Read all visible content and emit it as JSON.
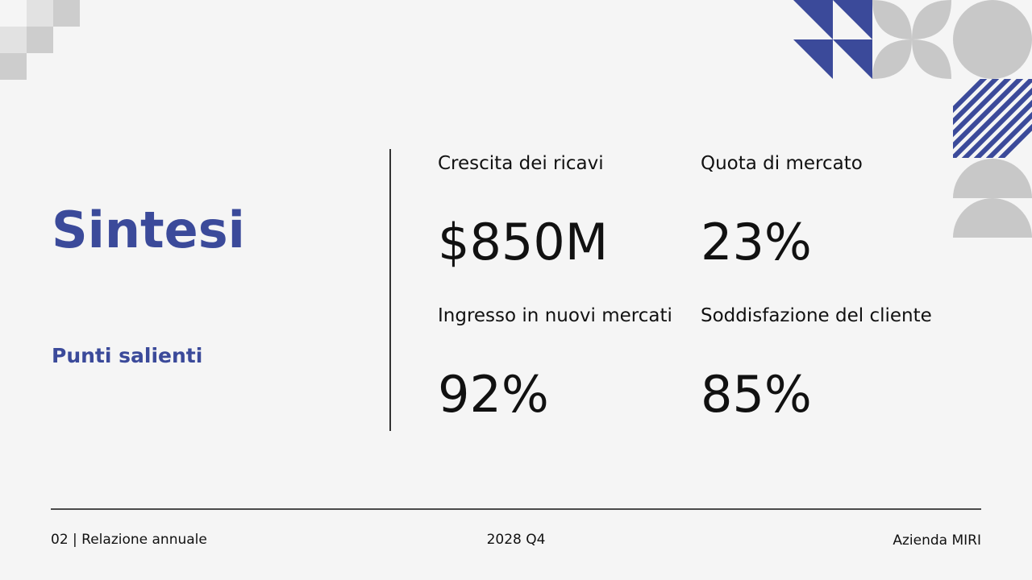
{
  "title": "Sintesi",
  "subtitle": "Punti salienti",
  "metrics": [
    {
      "label": "Crescita dei ricavi",
      "value": "$850M"
    },
    {
      "label": "Quota di mercato",
      "value": "23%"
    },
    {
      "label": "Ingresso in nuovi mercati",
      "value": "92%"
    },
    {
      "label": "Soddisfazione del cliente",
      "value": "85%"
    }
  ],
  "footer": {
    "left": "02 | Relazione annuale",
    "center": "2028 Q4",
    "right": "Azienda MIRI"
  }
}
